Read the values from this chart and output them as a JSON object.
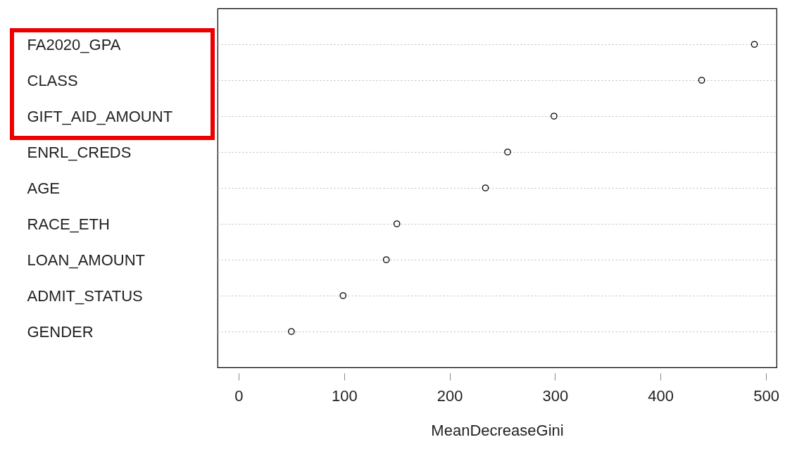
{
  "chart_data": {
    "type": "scatter",
    "orientation": "horizontal",
    "xlabel": "MeanDecreaseGini",
    "categories": [
      "FA2020_GPA",
      "CLASS",
      "GIFT_AID_AMOUNT",
      "ENRL_CREDS",
      "AGE",
      "RACE_ETH",
      "LOAN_AMOUNT",
      "ADMIT_STATUS",
      "GENDER"
    ],
    "values": [
      489,
      439,
      299,
      255,
      234,
      150,
      140,
      99,
      50
    ],
    "color": "#000000",
    "marker": "circle",
    "xlim": [
      -20,
      510
    ],
    "xticks": [
      0,
      100,
      200,
      300,
      400,
      500
    ],
    "grid": "y",
    "line_style": "dotted"
  }
}
